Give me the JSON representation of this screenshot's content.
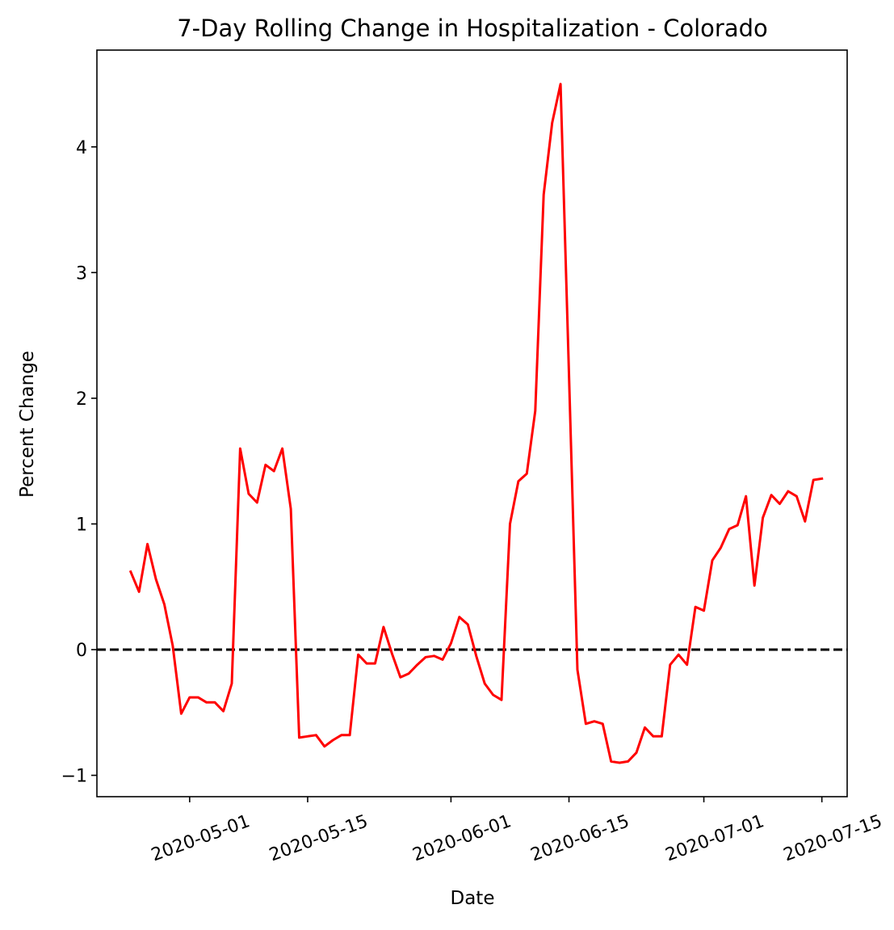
{
  "chart_data": {
    "type": "line",
    "title": "7-Day Rolling Change in Hospitalization - Colorado",
    "xlabel": "Date",
    "ylabel": "Percent Change",
    "x_axis_type": "date",
    "xlim": [
      "2020-04-20",
      "2020-07-18"
    ],
    "ylim": [
      -1.17,
      4.77
    ],
    "x_ticks": [
      "2020-05-01",
      "2020-05-15",
      "2020-06-01",
      "2020-06-15",
      "2020-07-01",
      "2020-07-15"
    ],
    "y_ticks": [
      -1,
      0,
      1,
      2,
      3,
      4
    ],
    "y_tick_labels": [
      "−1",
      "0",
      "1",
      "2",
      "3",
      "4"
    ],
    "grid": false,
    "reference_line": {
      "y": 0,
      "style": "dashed",
      "color": "#000000"
    },
    "series": [
      {
        "color": "#ff0000",
        "x": [
          "2020-04-24",
          "2020-04-25",
          "2020-04-26",
          "2020-04-27",
          "2020-04-28",
          "2020-04-29",
          "2020-04-30",
          "2020-05-01",
          "2020-05-02",
          "2020-05-03",
          "2020-05-04",
          "2020-05-05",
          "2020-05-06",
          "2020-05-07",
          "2020-05-08",
          "2020-05-09",
          "2020-05-10",
          "2020-05-11",
          "2020-05-12",
          "2020-05-13",
          "2020-05-14",
          "2020-05-15",
          "2020-05-16",
          "2020-05-17",
          "2020-05-18",
          "2020-05-19",
          "2020-05-20",
          "2020-05-21",
          "2020-05-22",
          "2020-05-23",
          "2020-05-24",
          "2020-05-25",
          "2020-05-26",
          "2020-05-27",
          "2020-05-28",
          "2020-05-29",
          "2020-05-30",
          "2020-05-31",
          "2020-06-01",
          "2020-06-02",
          "2020-06-03",
          "2020-06-04",
          "2020-06-05",
          "2020-06-06",
          "2020-06-07",
          "2020-06-08",
          "2020-06-09",
          "2020-06-10",
          "2020-06-11",
          "2020-06-12",
          "2020-06-13",
          "2020-06-14",
          "2020-06-15",
          "2020-06-16",
          "2020-06-17",
          "2020-06-18",
          "2020-06-19",
          "2020-06-20",
          "2020-06-21",
          "2020-06-22",
          "2020-06-23",
          "2020-06-24",
          "2020-06-25",
          "2020-06-26",
          "2020-06-27",
          "2020-06-28",
          "2020-06-29",
          "2020-06-30",
          "2020-07-01",
          "2020-07-02",
          "2020-07-03",
          "2020-07-04",
          "2020-07-05",
          "2020-07-06",
          "2020-07-07",
          "2020-07-08",
          "2020-07-09",
          "2020-07-10",
          "2020-07-11",
          "2020-07-12",
          "2020-07-13",
          "2020-07-14",
          "2020-07-15"
        ],
        "values": [
          0.62,
          0.46,
          0.84,
          0.56,
          0.36,
          0.03,
          -0.51,
          -0.38,
          -0.38,
          -0.42,
          -0.42,
          -0.49,
          -0.27,
          1.6,
          1.24,
          1.17,
          1.47,
          1.42,
          1.6,
          1.12,
          -0.7,
          -0.69,
          -0.68,
          -0.77,
          -0.72,
          -0.68,
          -0.68,
          -0.04,
          -0.11,
          -0.11,
          0.18,
          -0.03,
          -0.22,
          -0.19,
          -0.12,
          -0.06,
          -0.05,
          -0.08,
          0.05,
          0.26,
          0.2,
          -0.05,
          -0.27,
          -0.36,
          -0.4,
          1.0,
          1.34,
          1.4,
          1.9,
          3.62,
          4.19,
          4.5,
          2.2,
          -0.16,
          -0.59,
          -0.57,
          -0.59,
          -0.89,
          -0.9,
          -0.89,
          -0.82,
          -0.62,
          -0.69,
          -0.69,
          -0.12,
          -0.04,
          -0.12,
          0.34,
          0.31,
          0.71,
          0.81,
          0.96,
          0.99,
          1.22,
          0.51,
          1.05,
          1.23,
          1.16,
          1.26,
          1.22,
          1.02,
          1.35,
          1.36
        ]
      }
    ]
  }
}
